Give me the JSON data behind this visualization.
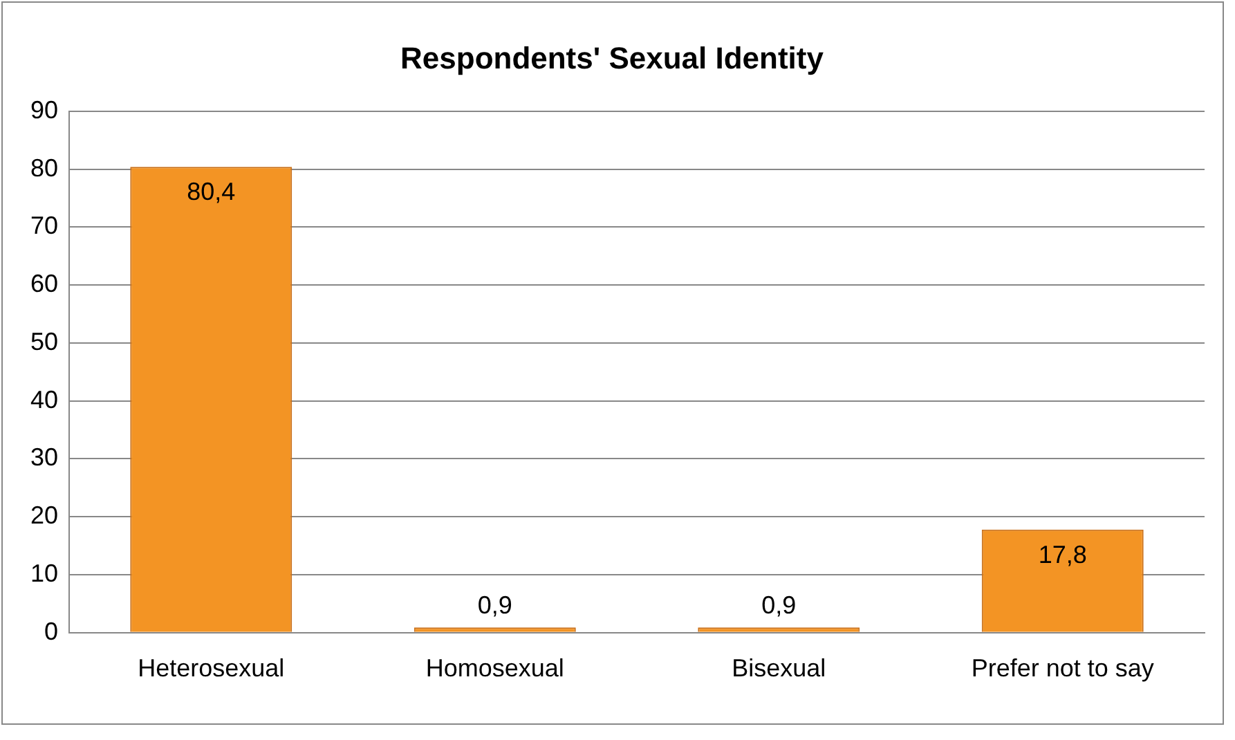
{
  "chart_data": {
    "type": "bar",
    "title": "Respondents' Sexual Identity",
    "categories": [
      "Heterosexual",
      "Homosexual",
      "Bisexual",
      "Prefer not to say"
    ],
    "values": [
      80.4,
      0.9,
      0.9,
      17.8
    ],
    "value_labels": [
      "80,4",
      "0,9",
      "0,9",
      "17,8"
    ],
    "color": "#f39424",
    "ylim": [
      0,
      90
    ],
    "yticks": [
      0,
      10,
      20,
      30,
      40,
      50,
      60,
      70,
      80,
      90
    ],
    "grid": "y",
    "legend": false
  }
}
